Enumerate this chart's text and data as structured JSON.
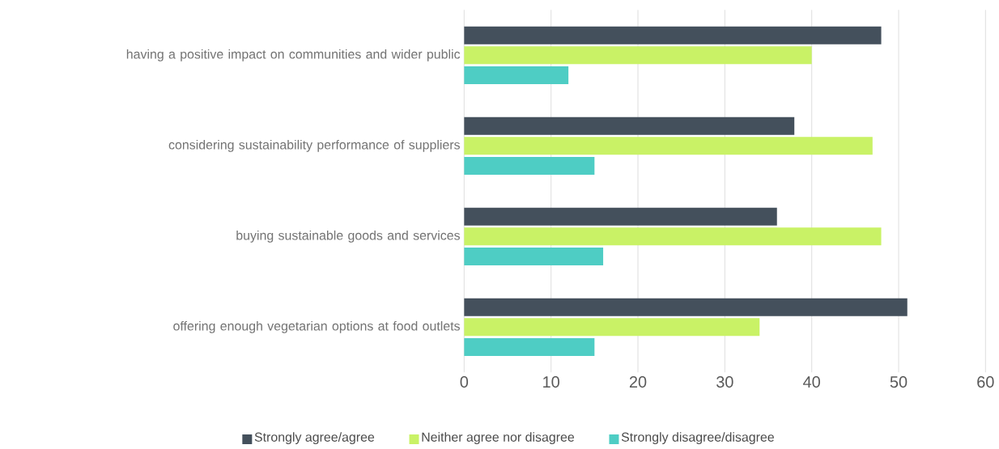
{
  "chart_data": {
    "type": "bar",
    "orientation": "horizontal",
    "categories": [
      "having a positive impact on communities and wider public",
      "considering sustainability performance of suppliers",
      "buying sustainable goods and services",
      "offering enough vegetarian options at food outlets"
    ],
    "series": [
      {
        "name": "Strongly agree/agree",
        "color": "#44505c",
        "values": [
          48,
          38,
          36,
          51
        ]
      },
      {
        "name": "Neither agree nor disagree",
        "color": "#c9f266",
        "values": [
          40,
          47,
          48,
          34
        ]
      },
      {
        "name": "Strongly disagree/disagree",
        "color": "#4ecdc4",
        "values": [
          12,
          15,
          16,
          15
        ]
      }
    ],
    "xlim": [
      0,
      60
    ],
    "xticks": [
      0,
      10,
      20,
      30,
      40,
      50,
      60
    ],
    "grid": "x",
    "legend": "bottom"
  }
}
